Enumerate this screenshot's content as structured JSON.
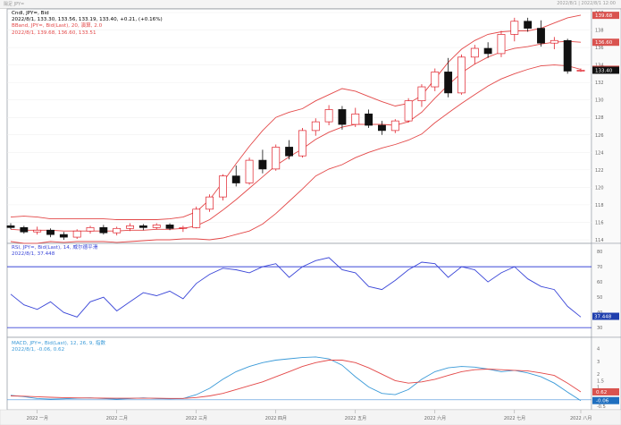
{
  "window": {
    "title": "陽足 JPY=",
    "timestamp": "2022/8/1 | 2022/8/1 12:00"
  },
  "price_panel": {
    "legend": [
      {
        "text": "Cndl, JPY=, Bid",
        "color": "#000000"
      },
      {
        "text": "2022/8/1, 133.30, 133.56, 133.19, 133.40, +0.21, (+0.16%)",
        "color": "#000000"
      },
      {
        "text": "BBand, JPY=, Bid(Last), 20, 演算, 2.0",
        "color": "#e34848"
      },
      {
        "text": "2022/8/1, 139.68, 136.60, 133.51",
        "color": "#e34848"
      }
    ],
    "price_tags": [
      {
        "value": "139.68",
        "color": "#d9534f"
      },
      {
        "value": "136.60",
        "color": "#d9534f"
      },
      {
        "value": "133.51",
        "color": "#d9534f"
      },
      {
        "value": "133.40",
        "color": "#111111"
      }
    ]
  },
  "rsi_panel": {
    "legend": [
      {
        "text": "RSI, JPY=, Bid(Last), 14, 威尔德平滑",
        "color": "#3a46d8"
      },
      {
        "text": "2022/8/1, 37.448",
        "color": "#3a46d8"
      }
    ],
    "tag": {
      "value": "37.448",
      "color": "#1f3fae"
    }
  },
  "macd_panel": {
    "legend": [
      {
        "text": "MACD, JPY=, Bid(Last), 12, 26, 9, 指数",
        "color": "#3a9ad8"
      },
      {
        "text": "2022/8/1, -0.06, 0.62",
        "color": "#3a9ad8"
      }
    ],
    "tags": [
      {
        "value": "0.62",
        "color": "#d9534f"
      },
      {
        "value": "-0.06",
        "color": "#1f6fbf"
      }
    ]
  },
  "chart_data": [
    {
      "type": "candlestick",
      "title": "",
      "ylim": [
        114,
        140
      ],
      "ytick_labels": [
        "140",
        "138",
        "136",
        "134",
        "132",
        "130",
        "128",
        "126",
        "124",
        "122",
        "120",
        "118",
        "116",
        "114"
      ],
      "xtick_labels": [
        "2022 一月",
        "2022 二月",
        "2022 三月",
        "2022 四月",
        "2022 五月",
        "2022 六月",
        "2022 七月",
        "2022 八月"
      ],
      "series": [
        {
          "name": "BBand Upper",
          "color": "#e34848",
          "values": [
            116.6,
            116.7,
            116.6,
            116.4,
            116.4,
            116.4,
            116.4,
            116.4,
            116.3,
            116.3,
            116.3,
            116.3,
            116.4,
            116.6,
            117.2,
            118.6,
            120.6,
            122.7,
            124.7,
            126.5,
            128.0,
            128.6,
            129.0,
            129.9,
            130.6,
            131.3,
            131.0,
            130.4,
            129.8,
            129.3,
            129.6,
            130.5,
            132.4,
            134.3,
            135.8,
            136.8,
            137.5,
            137.8,
            137.9,
            137.9,
            138.2,
            138.8,
            139.4,
            139.7
          ]
        },
        {
          "name": "BBand Middle",
          "color": "#e34848",
          "values": [
            115.2,
            115.1,
            115.1,
            115.1,
            115.0,
            115.0,
            115.0,
            115.0,
            115.0,
            115.1,
            115.1,
            115.2,
            115.2,
            115.3,
            115.6,
            116.3,
            117.4,
            118.6,
            119.9,
            121.2,
            122.5,
            123.5,
            124.4,
            125.5,
            126.3,
            126.9,
            127.2,
            127.2,
            127.2,
            127.1,
            127.5,
            128.6,
            130.2,
            131.7,
            133.1,
            134.1,
            134.9,
            135.5,
            135.9,
            136.1,
            136.4,
            136.6,
            136.7,
            136.6
          ]
        },
        {
          "name": "BBand Lower",
          "color": "#e34848",
          "values": [
            113.8,
            113.6,
            113.6,
            113.8,
            113.7,
            113.8,
            113.8,
            113.8,
            113.7,
            113.8,
            113.9,
            114.0,
            114.0,
            114.1,
            114.1,
            114.0,
            114.2,
            114.6,
            115.0,
            115.8,
            117.0,
            118.4,
            119.8,
            121.3,
            122.1,
            122.6,
            123.4,
            124.0,
            124.5,
            124.9,
            125.4,
            126.1,
            127.4,
            128.5,
            129.6,
            130.6,
            131.6,
            132.4,
            133.0,
            133.5,
            133.9,
            134.0,
            133.9,
            133.5
          ]
        }
      ],
      "candles": [
        [
          115.6,
          115.9,
          115.2,
          115.4
        ],
        [
          115.4,
          115.6,
          114.7,
          114.9
        ],
        [
          114.9,
          115.5,
          114.6,
          115.1
        ],
        [
          115.1,
          115.3,
          114.3,
          114.6
        ],
        [
          114.6,
          114.9,
          114.0,
          114.3
        ],
        [
          114.3,
          115.2,
          114.1,
          115.0
        ],
        [
          115.0,
          115.6,
          114.7,
          115.4
        ],
        [
          115.4,
          115.7,
          114.6,
          114.8
        ],
        [
          114.8,
          115.5,
          114.5,
          115.3
        ],
        [
          115.3,
          115.9,
          115.0,
          115.6
        ],
        [
          115.6,
          115.8,
          115.1,
          115.4
        ],
        [
          115.4,
          115.9,
          115.2,
          115.7
        ],
        [
          115.7,
          115.9,
          115.1,
          115.3
        ],
        [
          115.3,
          115.6,
          114.9,
          115.4
        ],
        [
          115.4,
          117.8,
          115.3,
          117.5
        ],
        [
          117.5,
          119.2,
          117.2,
          118.9
        ],
        [
          118.9,
          121.5,
          118.5,
          121.3
        ],
        [
          121.3,
          122.5,
          120.1,
          120.5
        ],
        [
          120.5,
          123.4,
          120.3,
          123.1
        ],
        [
          123.1,
          124.3,
          121.6,
          122.1
        ],
        [
          122.1,
          124.9,
          121.9,
          124.6
        ],
        [
          124.6,
          125.4,
          123.2,
          123.6
        ],
        [
          123.6,
          126.8,
          123.4,
          126.5
        ],
        [
          126.5,
          127.9,
          125.9,
          127.5
        ],
        [
          127.5,
          129.4,
          127.1,
          128.9
        ],
        [
          128.9,
          129.3,
          126.6,
          127.2
        ],
        [
          127.2,
          129.1,
          126.9,
          128.4
        ],
        [
          128.4,
          128.9,
          126.8,
          127.1
        ],
        [
          127.1,
          127.6,
          126.0,
          126.5
        ],
        [
          126.5,
          127.8,
          126.2,
          127.6
        ],
        [
          127.6,
          130.2,
          127.4,
          129.9
        ],
        [
          129.9,
          131.8,
          129.2,
          131.5
        ],
        [
          131.5,
          133.6,
          131.0,
          133.2
        ],
        [
          133.2,
          134.8,
          130.3,
          130.8
        ],
        [
          130.8,
          135.2,
          130.6,
          134.9
        ],
        [
          134.9,
          136.3,
          134.1,
          135.9
        ],
        [
          135.9,
          136.6,
          134.8,
          135.3
        ],
        [
          135.3,
          137.9,
          134.9,
          137.5
        ],
        [
          137.5,
          139.4,
          136.7,
          139.0
        ],
        [
          139.0,
          139.4,
          137.8,
          138.2
        ],
        [
          138.2,
          139.1,
          136.1,
          136.5
        ],
        [
          136.5,
          137.2,
          135.8,
          136.8
        ],
        [
          136.8,
          137.0,
          133.0,
          133.3
        ],
        [
          133.3,
          133.6,
          133.2,
          133.4
        ]
      ]
    },
    {
      "type": "line",
      "title": "",
      "ylim": [
        26,
        83
      ],
      "ytick_labels": [
        "80",
        "70",
        "60",
        "50",
        "40",
        "30"
      ],
      "reference_lines": [
        70,
        30
      ],
      "series": [
        {
          "name": "RSI",
          "color": "#3a46d8",
          "values": [
            52,
            45,
            42,
            47,
            40,
            37,
            47,
            50,
            41,
            47,
            53,
            51,
            54,
            49,
            59,
            65,
            69,
            68,
            66,
            70,
            72,
            63,
            70,
            74,
            76,
            68,
            66,
            57,
            55,
            61,
            68,
            73,
            72,
            63,
            70,
            68,
            60,
            66,
            70,
            62,
            57,
            55,
            44,
            37
          ]
        }
      ]
    },
    {
      "type": "line",
      "title": "",
      "ylim": [
        -0.5,
        4.6
      ],
      "ytick_labels": [
        "4",
        "3",
        "2",
        "1.5",
        "1",
        "0.5",
        "0",
        "-0.5"
      ],
      "series": [
        {
          "name": "MACD",
          "color": "#3a9ad8",
          "values": [
            0.35,
            0.25,
            0.1,
            0.05,
            0.08,
            0.12,
            0.15,
            0.1,
            0.05,
            0.1,
            0.15,
            0.1,
            0.08,
            0.1,
            0.4,
            0.9,
            1.6,
            2.2,
            2.6,
            2.9,
            3.1,
            3.2,
            3.3,
            3.35,
            3.2,
            2.7,
            1.8,
            1.0,
            0.5,
            0.4,
            0.8,
            1.6,
            2.2,
            2.5,
            2.6,
            2.55,
            2.4,
            2.2,
            2.3,
            2.1,
            1.8,
            1.3,
            0.6,
            -0.06
          ]
        },
        {
          "name": "Signal",
          "color": "#e34848",
          "values": [
            0.3,
            0.28,
            0.24,
            0.2,
            0.17,
            0.15,
            0.14,
            0.13,
            0.12,
            0.12,
            0.12,
            0.12,
            0.11,
            0.11,
            0.18,
            0.3,
            0.5,
            0.8,
            1.1,
            1.4,
            1.8,
            2.2,
            2.6,
            2.9,
            3.1,
            3.1,
            2.9,
            2.5,
            2.0,
            1.5,
            1.3,
            1.4,
            1.6,
            1.9,
            2.2,
            2.35,
            2.4,
            2.35,
            2.3,
            2.25,
            2.1,
            1.9,
            1.3,
            0.62
          ]
        }
      ]
    }
  ]
}
